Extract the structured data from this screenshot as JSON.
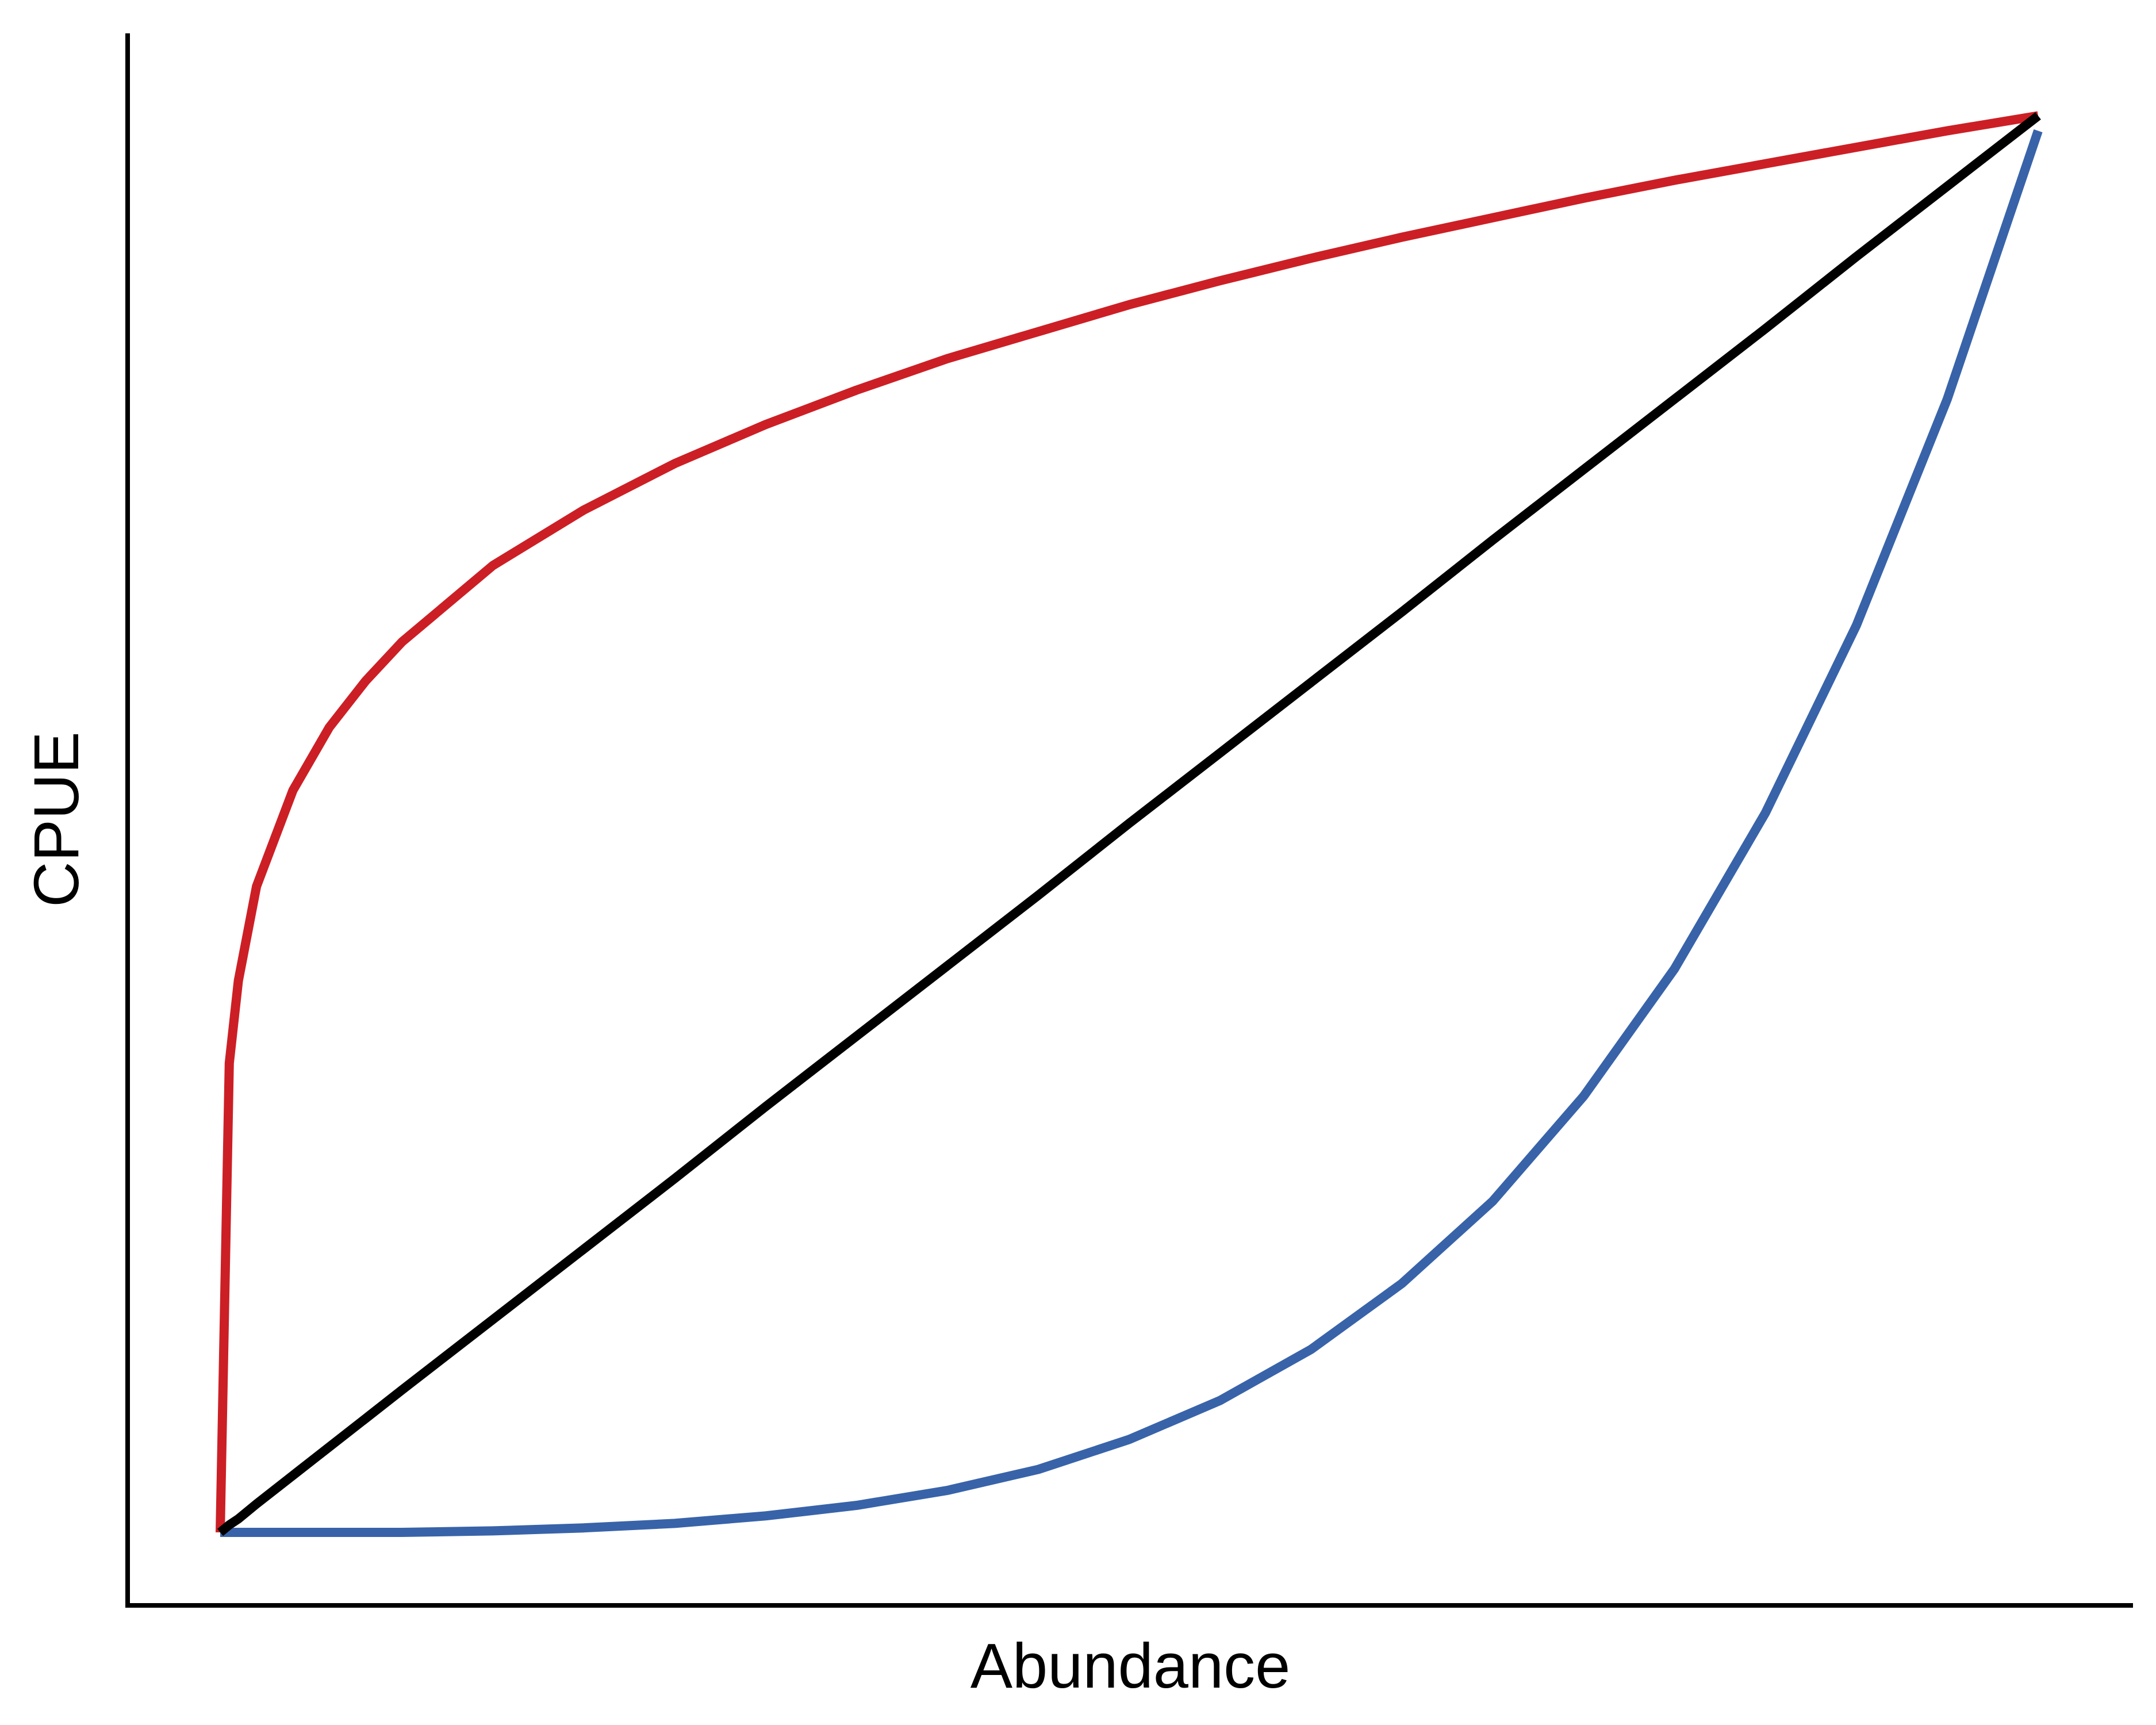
{
  "chart_data": {
    "type": "line",
    "xlabel": "Abundance",
    "ylabel": "CPUE",
    "xlim": [
      0,
      1
    ],
    "ylim": [
      0,
      1
    ],
    "grid": false,
    "legend": "none",
    "x": [
      0.0,
      0.005,
      0.01,
      0.02,
      0.04,
      0.06,
      0.08,
      0.1,
      0.15,
      0.2,
      0.25,
      0.3,
      0.35,
      0.4,
      0.45,
      0.5,
      0.55,
      0.6,
      0.65,
      0.7,
      0.75,
      0.8,
      0.85,
      0.9,
      0.95,
      1.0
    ],
    "series": [
      {
        "color": "#cc1f25",
        "values": [
          0.0,
          0.313,
          0.368,
          0.431,
          0.495,
          0.537,
          0.568,
          0.594,
          0.645,
          0.682,
          0.713,
          0.739,
          0.762,
          0.783,
          0.801,
          0.819,
          0.835,
          0.85,
          0.864,
          0.877,
          0.89,
          0.902,
          0.913,
          0.924,
          0.935,
          0.945
        ]
      },
      {
        "color": "#000000",
        "values": [
          0.0,
          0.005,
          0.009,
          0.019,
          0.038,
          0.057,
          0.076,
          0.095,
          0.142,
          0.189,
          0.236,
          0.284,
          0.331,
          0.378,
          0.425,
          0.473,
          0.52,
          0.567,
          0.614,
          0.662,
          0.709,
          0.756,
          0.803,
          0.851,
          0.898,
          0.945
        ]
      },
      {
        "color": "#3863a9",
        "values": [
          0.0,
          0.0,
          0.0,
          0.0,
          0.0,
          0.0,
          0.0,
          0.0,
          0.001,
          0.003,
          0.006,
          0.011,
          0.018,
          0.028,
          0.042,
          0.062,
          0.088,
          0.122,
          0.166,
          0.221,
          0.291,
          0.376,
          0.48,
          0.605,
          0.756,
          0.935
        ]
      }
    ]
  }
}
